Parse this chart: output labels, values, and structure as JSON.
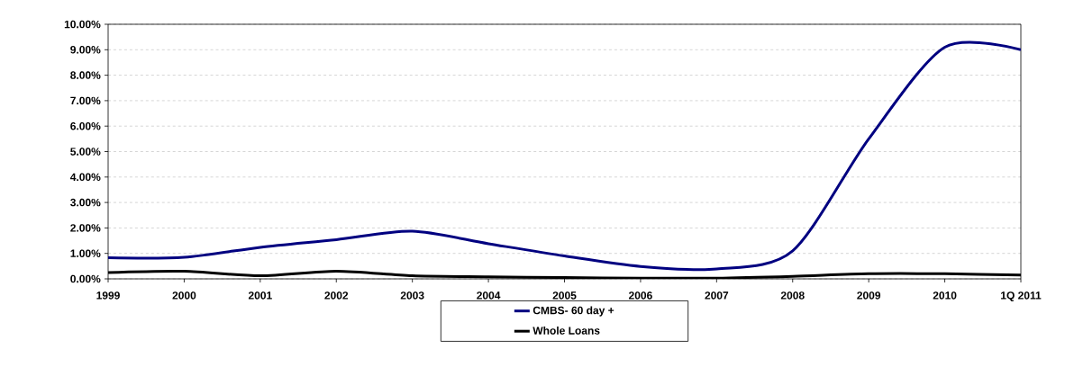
{
  "chart_data": {
    "type": "line",
    "categories": [
      "1999",
      "2000",
      "2001",
      "2002",
      "2003",
      "2004",
      "2005",
      "2006",
      "2007",
      "2008",
      "2009",
      "2010",
      "1Q 2011"
    ],
    "series": [
      {
        "name": "CMBS- 60 day +",
        "color": "#000080",
        "values": [
          0.83,
          0.85,
          1.24,
          1.54,
          1.87,
          1.38,
          0.9,
          0.49,
          0.39,
          1.1,
          5.5,
          9.1,
          9.0
        ]
      },
      {
        "name": "Whole Loans",
        "color": "#000000",
        "values": [
          0.25,
          0.3,
          0.12,
          0.3,
          0.12,
          0.08,
          0.05,
          0.03,
          0.03,
          0.1,
          0.2,
          0.2,
          0.15
        ]
      }
    ],
    "ylim": [
      0,
      10
    ],
    "yticks": [
      {
        "value": 0,
        "label": "0.00%"
      },
      {
        "value": 1,
        "label": "1.00%"
      },
      {
        "value": 2,
        "label": "2.00%"
      },
      {
        "value": 3,
        "label": "3.00%"
      },
      {
        "value": 4,
        "label": "4.00%"
      },
      {
        "value": 5,
        "label": "5.00%"
      },
      {
        "value": 6,
        "label": "6.00%"
      },
      {
        "value": 7,
        "label": "7.00%"
      },
      {
        "value": 8,
        "label": "8.00%"
      },
      {
        "value": 9,
        "label": "9.00%"
      },
      {
        "value": 10,
        "label": "10.00%"
      }
    ],
    "grid": "y",
    "legend": "bottom",
    "marker": "none",
    "line_style": "solid"
  }
}
